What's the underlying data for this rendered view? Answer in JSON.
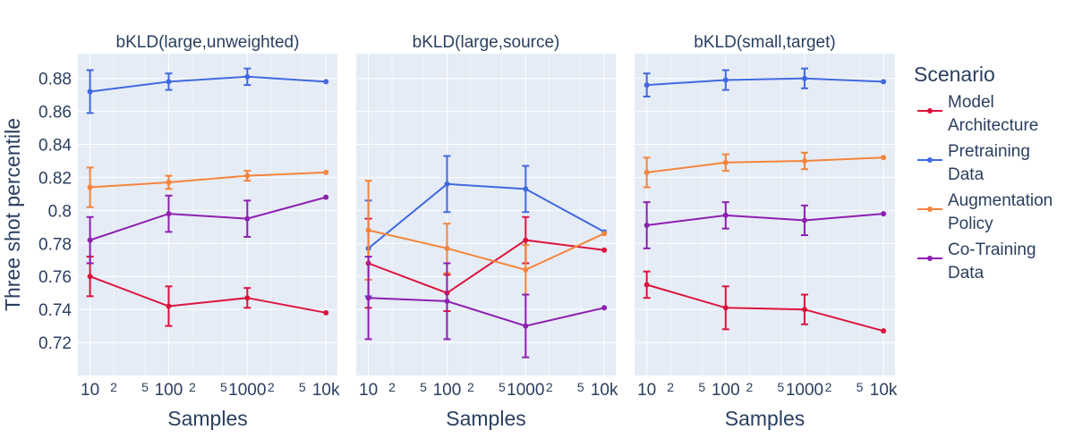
{
  "chart_data": {
    "type": "line",
    "ylabel": "Three shot percentile",
    "xlabel": "Samples",
    "x_scale": "log",
    "x": [
      10,
      100,
      1000,
      10000
    ],
    "x_tick_labels": [
      "10",
      "100",
      "1000",
      "10k"
    ],
    "x_minor_tick_labels": [
      "2",
      "5"
    ],
    "ylim": [
      0.7,
      0.895
    ],
    "y_ticks": [
      0.72,
      0.74,
      0.76,
      0.78,
      0.8,
      0.82,
      0.84,
      0.86,
      0.88
    ],
    "y_tick_labels": [
      "0.72",
      "0.74",
      "0.76",
      "0.78",
      "0.8",
      "0.82",
      "0.84",
      "0.86",
      "0.88"
    ],
    "grid": true,
    "legend": {
      "title": "Scenario",
      "placement": "right",
      "entries": [
        {
          "lines": [
            "Model",
            "Architecture"
          ],
          "color": "#dc143c"
        },
        {
          "lines": [
            "Pretraining",
            "Data"
          ],
          "color": "#4169e1"
        },
        {
          "lines": [
            "Augmentation",
            "Policy"
          ],
          "color": "#f5843c"
        },
        {
          "lines": [
            "Co-Training",
            "Data"
          ],
          "color": "#8e1fb0"
        }
      ]
    },
    "panels": [
      {
        "title": "bKLD(large,unweighted)",
        "series": [
          {
            "name": "Model Architecture",
            "color": "#dc143c",
            "values": [
              0.76,
              0.742,
              0.747,
              0.738
            ],
            "errors": [
              0.012,
              0.012,
              0.006,
              0
            ]
          },
          {
            "name": "Pretraining Data",
            "color": "#4169e1",
            "values": [
              0.872,
              0.878,
              0.881,
              0.878
            ],
            "errors": [
              0.013,
              0.005,
              0.005,
              0
            ]
          },
          {
            "name": "Augmentation Policy",
            "color": "#f5843c",
            "values": [
              0.814,
              0.817,
              0.821,
              0.823
            ],
            "errors": [
              0.012,
              0.004,
              0.003,
              0
            ]
          },
          {
            "name": "Co-Training Data",
            "color": "#8e1fb0",
            "values": [
              0.782,
              0.798,
              0.795,
              0.808
            ],
            "errors": [
              0.014,
              0.011,
              0.011,
              0
            ]
          }
        ]
      },
      {
        "title": "bKLD(large,source)",
        "series": [
          {
            "name": "Model Architecture",
            "color": "#dc143c",
            "values": [
              0.768,
              0.75,
              0.782,
              0.776
            ],
            "errors": [
              0.027,
              0.011,
              0.014,
              0
            ]
          },
          {
            "name": "Pretraining Data",
            "color": "#4169e1",
            "values": [
              0.777,
              0.816,
              0.813,
              0.787
            ],
            "errors": [
              0.029,
              0.017,
              0.014,
              0
            ]
          },
          {
            "name": "Augmentation Policy",
            "color": "#f5843c",
            "values": [
              0.788,
              0.777,
              0.764,
              0.786
            ],
            "errors": [
              0.03,
              0.015,
              0.015,
              0
            ]
          },
          {
            "name": "Co-Training Data",
            "color": "#8e1fb0",
            "values": [
              0.747,
              0.745,
              0.73,
              0.741
            ],
            "errors": [
              0.025,
              0.023,
              0.019,
              0
            ]
          }
        ]
      },
      {
        "title": "bKLD(small,target)",
        "series": [
          {
            "name": "Model Architecture",
            "color": "#dc143c",
            "values": [
              0.755,
              0.741,
              0.74,
              0.727
            ],
            "errors": [
              0.008,
              0.013,
              0.009,
              0
            ]
          },
          {
            "name": "Pretraining Data",
            "color": "#4169e1",
            "values": [
              0.876,
              0.879,
              0.88,
              0.878
            ],
            "errors": [
              0.007,
              0.006,
              0.006,
              0
            ]
          },
          {
            "name": "Augmentation Policy",
            "color": "#f5843c",
            "values": [
              0.823,
              0.829,
              0.83,
              0.832
            ],
            "errors": [
              0.009,
              0.005,
              0.005,
              0
            ]
          },
          {
            "name": "Co-Training Data",
            "color": "#8e1fb0",
            "values": [
              0.791,
              0.797,
              0.794,
              0.798
            ],
            "errors": [
              0.014,
              0.008,
              0.009,
              0
            ]
          }
        ]
      }
    ]
  }
}
